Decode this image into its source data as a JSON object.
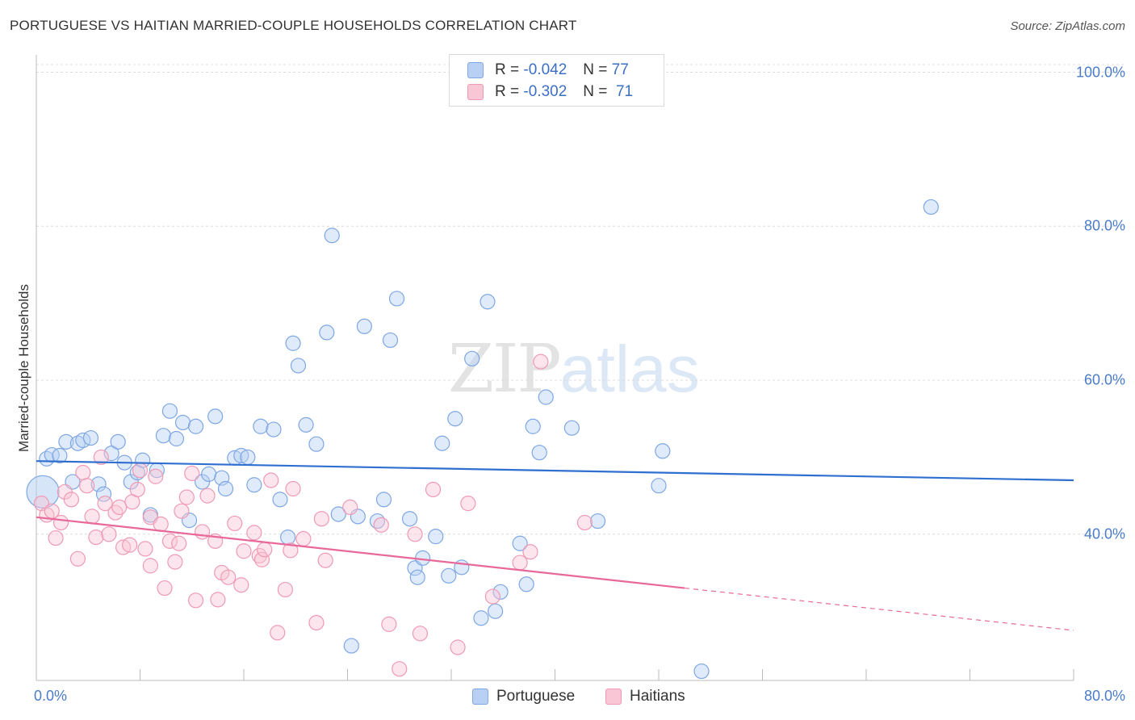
{
  "chart_data": {
    "type": "scatter",
    "title": "PORTUGUESE VS HAITIAN MARRIED-COUPLE HOUSEHOLDS CORRELATION CHART",
    "source": "Source: ZipAtlas.com",
    "xlabel": "",
    "ylabel": "Married-couple Households",
    "xlim": [
      0,
      80
    ],
    "ylim": [
      21,
      101
    ],
    "x_tick_labels": [
      "0.0%",
      "80.0%"
    ],
    "y_ticks": [
      {
        "value": 100,
        "label": "100.0%"
      },
      {
        "value": 80,
        "label": "80.0%"
      },
      {
        "value": 60,
        "label": "60.0%"
      },
      {
        "value": 40,
        "label": "40.0%"
      }
    ],
    "grid": true,
    "legend_position": "top-center",
    "series": [
      {
        "name": "Portuguese",
        "color": "#7ea7e3",
        "fill": "#b7d0f3",
        "line_color": "#2f6fd0",
        "r_label": "R =",
        "r_value": "-0.042",
        "n_label": "N =",
        "n_value": "77",
        "trend": {
          "x0": 0,
          "y0": 49.5,
          "x1": 80,
          "y1": 47.0
        },
        "points": [
          [
            0.5,
            45.5
          ],
          [
            0.8,
            49.8
          ],
          [
            1.2,
            50.3
          ],
          [
            1.8,
            50.2
          ],
          [
            2.3,
            52.0
          ],
          [
            2.8,
            46.8
          ],
          [
            3.2,
            51.8
          ],
          [
            3.6,
            52.2
          ],
          [
            4.2,
            52.5
          ],
          [
            4.8,
            46.5
          ],
          [
            5.2,
            45.2
          ],
          [
            5.8,
            50.5
          ],
          [
            6.3,
            52.0
          ],
          [
            6.8,
            49.3
          ],
          [
            7.3,
            46.8
          ],
          [
            7.8,
            48.0
          ],
          [
            8.2,
            49.6
          ],
          [
            8.8,
            42.5
          ],
          [
            9.3,
            48.3
          ],
          [
            9.8,
            52.8
          ],
          [
            10.3,
            56.0
          ],
          [
            10.8,
            52.4
          ],
          [
            11.3,
            54.5
          ],
          [
            11.8,
            41.8
          ],
          [
            12.3,
            54.0
          ],
          [
            12.8,
            46.8
          ],
          [
            13.3,
            47.8
          ],
          [
            13.8,
            55.3
          ],
          [
            14.3,
            47.3
          ],
          [
            14.6,
            45.9
          ],
          [
            15.3,
            49.9
          ],
          [
            15.8,
            50.2
          ],
          [
            16.3,
            50.0
          ],
          [
            16.8,
            46.4
          ],
          [
            17.3,
            54.0
          ],
          [
            18.3,
            53.6
          ],
          [
            18.8,
            44.5
          ],
          [
            19.4,
            39.6
          ],
          [
            19.8,
            64.8
          ],
          [
            20.2,
            61.9
          ],
          [
            20.8,
            54.2
          ],
          [
            21.6,
            51.7
          ],
          [
            22.4,
            66.2
          ],
          [
            22.8,
            78.8
          ],
          [
            23.3,
            42.6
          ],
          [
            24.3,
            25.5
          ],
          [
            24.8,
            42.3
          ],
          [
            25.3,
            67.0
          ],
          [
            26.3,
            41.7
          ],
          [
            26.8,
            44.5
          ],
          [
            27.3,
            65.2
          ],
          [
            27.8,
            70.6
          ],
          [
            28.8,
            42.0
          ],
          [
            29.2,
            35.6
          ],
          [
            29.4,
            34.4
          ],
          [
            29.8,
            36.9
          ],
          [
            30.8,
            39.7
          ],
          [
            31.3,
            51.8
          ],
          [
            31.8,
            34.6
          ],
          [
            32.3,
            55.0
          ],
          [
            32.8,
            35.7
          ],
          [
            33.6,
            62.8
          ],
          [
            34.3,
            29.1
          ],
          [
            34.8,
            70.2
          ],
          [
            35.4,
            30.0
          ],
          [
            35.8,
            32.5
          ],
          [
            37.3,
            38.8
          ],
          [
            37.8,
            33.5
          ],
          [
            38.3,
            54.0
          ],
          [
            38.8,
            50.6
          ],
          [
            39.3,
            57.8
          ],
          [
            41.3,
            53.8
          ],
          [
            43.3,
            41.7
          ],
          [
            48.0,
            46.3
          ],
          [
            48.3,
            50.8
          ],
          [
            51.3,
            22.2
          ],
          [
            69.0,
            82.5
          ]
        ]
      },
      {
        "name": "Haitians",
        "color": "#ef9ab4",
        "fill": "#f9c6d5",
        "line_color": "#e8689a",
        "r_label": "R =",
        "r_value": "-0.302",
        "n_label": "N =",
        "n_value": "71",
        "trend": {
          "x0": 0,
          "y0": 42.2,
          "x1": 50,
          "y1": 33.0
        },
        "trend_dashed": {
          "x0": 50,
          "y0": 33.0,
          "x1": 80,
          "y1": 27.5
        },
        "points": [
          [
            0.4,
            44.0
          ],
          [
            0.8,
            42.5
          ],
          [
            1.2,
            43.0
          ],
          [
            1.5,
            39.5
          ],
          [
            1.9,
            41.5
          ],
          [
            2.2,
            45.5
          ],
          [
            2.7,
            44.5
          ],
          [
            3.2,
            36.8
          ],
          [
            3.6,
            48.0
          ],
          [
            3.9,
            46.3
          ],
          [
            4.3,
            42.3
          ],
          [
            4.6,
            39.6
          ],
          [
            5.0,
            50.0
          ],
          [
            5.3,
            44.0
          ],
          [
            5.6,
            40.0
          ],
          [
            6.1,
            42.8
          ],
          [
            6.4,
            43.5
          ],
          [
            6.7,
            38.3
          ],
          [
            7.2,
            38.6
          ],
          [
            7.4,
            44.2
          ],
          [
            7.8,
            45.8
          ],
          [
            8.0,
            48.3
          ],
          [
            8.4,
            38.1
          ],
          [
            8.8,
            42.2
          ],
          [
            8.8,
            35.9
          ],
          [
            9.2,
            47.5
          ],
          [
            9.6,
            41.3
          ],
          [
            9.9,
            33.0
          ],
          [
            10.3,
            39.1
          ],
          [
            10.7,
            36.4
          ],
          [
            11.0,
            38.8
          ],
          [
            11.2,
            43.0
          ],
          [
            11.6,
            44.8
          ],
          [
            12.0,
            47.9
          ],
          [
            12.3,
            31.4
          ],
          [
            12.8,
            40.3
          ],
          [
            13.2,
            45.0
          ],
          [
            13.8,
            39.1
          ],
          [
            14.0,
            31.5
          ],
          [
            14.3,
            35.0
          ],
          [
            14.8,
            34.4
          ],
          [
            15.3,
            41.4
          ],
          [
            15.8,
            33.4
          ],
          [
            16.0,
            37.8
          ],
          [
            16.8,
            40.2
          ],
          [
            17.2,
            37.2
          ],
          [
            17.4,
            36.7
          ],
          [
            17.6,
            38.0
          ],
          [
            18.1,
            47.0
          ],
          [
            18.6,
            27.2
          ],
          [
            19.2,
            32.8
          ],
          [
            19.8,
            45.9
          ],
          [
            20.6,
            39.4
          ],
          [
            21.6,
            28.5
          ],
          [
            22.0,
            42.0
          ],
          [
            22.3,
            36.6
          ],
          [
            24.2,
            43.5
          ],
          [
            26.6,
            41.2
          ],
          [
            27.2,
            28.3
          ],
          [
            28.0,
            22.5
          ],
          [
            29.2,
            40.0
          ],
          [
            29.6,
            27.1
          ],
          [
            30.6,
            45.8
          ],
          [
            32.5,
            25.3
          ],
          [
            33.3,
            44.0
          ],
          [
            35.2,
            31.9
          ],
          [
            37.3,
            36.3
          ],
          [
            38.1,
            37.7
          ],
          [
            38.9,
            62.4
          ],
          [
            42.3,
            41.5
          ],
          [
            19.6,
            37.9
          ]
        ]
      }
    ]
  }
}
